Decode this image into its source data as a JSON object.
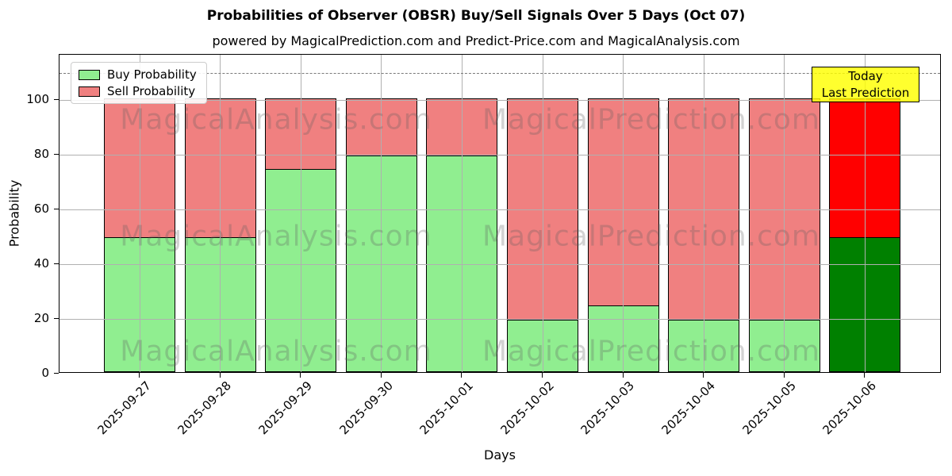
{
  "title": "Probabilities of Observer (OBSR) Buy/Sell Signals Over 5 Days (Oct 07)",
  "subtitle": "powered by MagicalPrediction.com and Predict-Price.com and MagicalAnalysis.com",
  "legend": {
    "items": [
      {
        "label": "Buy Probability",
        "color": "#90EE90"
      },
      {
        "label": "Sell Probability",
        "color": "#F08080"
      }
    ]
  },
  "annotation": {
    "line1": "Today",
    "line2": "Last Prediction",
    "box_color": "#FFFF00"
  },
  "watermarks": {
    "left_text": "MagicalAnalysis.com",
    "right_text": "MagicalPrediction.com"
  },
  "chart_data": {
    "type": "bar",
    "stacked": true,
    "title": "Probabilities of Observer (OBSR) Buy/Sell Signals Over 5 Days (Oct 07)",
    "xlabel": "Days",
    "ylabel": "Probability",
    "categories": [
      "2025-09-27",
      "2025-09-28",
      "2025-09-29",
      "2025-09-30",
      "2025-10-01",
      "2025-10-02",
      "2025-10-03",
      "2025-10-04",
      "2025-10-05",
      "2025-10-06"
    ],
    "series": [
      {
        "name": "Buy Probability",
        "values": [
          49.5,
          49.5,
          74.5,
          79.5,
          79.5,
          19.5,
          24.5,
          19.5,
          19.5,
          49.5
        ],
        "color": "#90EE90",
        "today_color": "#008000"
      },
      {
        "name": "Sell Probability",
        "values": [
          50.5,
          50.5,
          25.5,
          20.5,
          20.5,
          80.5,
          75.5,
          80.5,
          80.5,
          50.5
        ],
        "color": "#F08080",
        "today_color": "#FF0000"
      }
    ],
    "today_index": 9,
    "yticks": [
      0,
      20,
      40,
      60,
      80,
      100
    ],
    "ylim": [
      0,
      116.6
    ],
    "dashed_line_y": 110,
    "grid": true,
    "grid_color": "#b0b0b0",
    "legend_position": "upper left"
  }
}
